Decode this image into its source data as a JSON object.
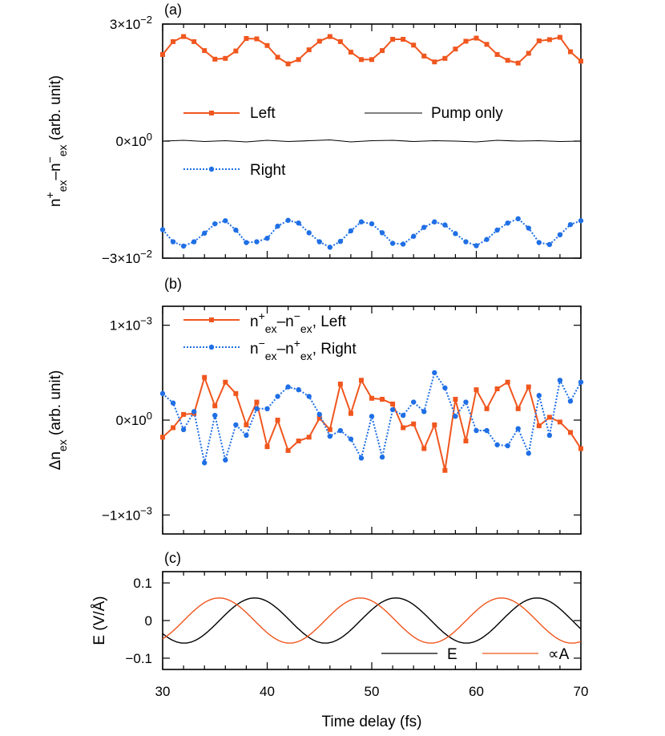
{
  "colors": {
    "left": "#f0561e",
    "right": "#1f6fe5",
    "pump_only": "#000000",
    "E": "#000000",
    "A": "#f0561e"
  },
  "xaxis": {
    "label": "Time delay (fs)",
    "ticks": [
      30,
      40,
      50,
      60,
      70
    ],
    "tick_labels": [
      "30",
      "40",
      "50",
      "60",
      "70"
    ]
  },
  "chart_data": [
    {
      "panel": "(a)",
      "type": "line",
      "xlim": [
        30,
        70
      ],
      "ylim": [
        -0.03,
        0.03
      ],
      "ylabel": {
        "base": "n",
        "sup1": "+",
        "sub1": "ex",
        "dash": "–n",
        "sup2": "−",
        "sub2": "ex",
        "unit": " (arb. unit)"
      },
      "yticks": [
        {
          "value": 0.03,
          "mantissa": "3×10",
          "exp": "−2"
        },
        {
          "value": 0,
          "mantissa": "0×10",
          "exp": "0"
        },
        {
          "value": -0.03,
          "mantissa": "−3×10",
          "exp": "−2"
        }
      ],
      "legend": {
        "left": "Left",
        "pump_only": "Pump only",
        "right": "Right"
      },
      "series": [
        {
          "key": "left",
          "name": "Left",
          "style": "solid-square",
          "x": [
            30,
            31,
            32,
            33,
            34,
            35,
            36,
            37,
            38,
            39,
            40,
            41,
            42,
            43,
            44,
            45,
            46,
            47,
            48,
            49,
            50,
            51,
            52,
            53,
            54,
            55,
            56,
            57,
            58,
            59,
            60,
            61,
            62,
            63,
            64,
            65,
            66,
            67,
            68,
            69,
            70
          ],
          "y": [
            0.0222,
            0.0255,
            0.0268,
            0.0255,
            0.0232,
            0.021,
            0.0212,
            0.0231,
            0.0263,
            0.0262,
            0.0245,
            0.0215,
            0.0198,
            0.0209,
            0.0234,
            0.0256,
            0.0268,
            0.0255,
            0.0228,
            0.0209,
            0.0209,
            0.0232,
            0.0261,
            0.0261,
            0.0246,
            0.0218,
            0.0203,
            0.0212,
            0.0236,
            0.0256,
            0.0264,
            0.0248,
            0.0222,
            0.0207,
            0.02,
            0.0225,
            0.0257,
            0.026,
            0.0266,
            0.0229,
            0.0205
          ]
        },
        {
          "key": "right",
          "name": "Right",
          "style": "dotted-circle",
          "x": [
            30,
            31,
            32,
            33,
            34,
            35,
            36,
            37,
            38,
            39,
            40,
            41,
            42,
            43,
            44,
            45,
            46,
            47,
            48,
            49,
            50,
            51,
            52,
            53,
            54,
            55,
            56,
            57,
            58,
            59,
            60,
            61,
            62,
            63,
            64,
            65,
            66,
            67,
            68,
            69,
            70
          ],
          "y": [
            -0.0227,
            -0.0258,
            -0.0269,
            -0.0258,
            -0.0236,
            -0.0212,
            -0.0204,
            -0.0228,
            -0.026,
            -0.0258,
            -0.0249,
            -0.0218,
            -0.0203,
            -0.021,
            -0.0235,
            -0.0258,
            -0.0272,
            -0.0257,
            -0.023,
            -0.0207,
            -0.0212,
            -0.0235,
            -0.0262,
            -0.0264,
            -0.0244,
            -0.0221,
            -0.0207,
            -0.0215,
            -0.0237,
            -0.0258,
            -0.0268,
            -0.0252,
            -0.0228,
            -0.021,
            -0.0199,
            -0.0223,
            -0.026,
            -0.0265,
            -0.024,
            -0.0214,
            -0.0204
          ]
        },
        {
          "key": "pump_only",
          "name": "Pump only",
          "style": "thin-line",
          "x": [
            30,
            32,
            34,
            36,
            38,
            40,
            42,
            44,
            46,
            48,
            50,
            52,
            54,
            56,
            58,
            60,
            62,
            64,
            66,
            68,
            70
          ],
          "y": [
            0.0,
            0.0002,
            -0.0001,
            0.0001,
            -0.0002,
            0.0002,
            -0.0001,
            0.0001,
            0.0003,
            -0.0002,
            0.0001,
            0.0002,
            -0.0001,
            0.0001,
            0.0,
            -0.0002,
            0.0002,
            0.0,
            0.0001,
            -0.0001,
            0.0
          ]
        }
      ]
    },
    {
      "panel": "(b)",
      "type": "line",
      "xlim": [
        30,
        70
      ],
      "ylim": [
        -0.0012,
        0.0012
      ],
      "ylabel": {
        "base": "Δn",
        "sub1": "ex",
        "unit": " (arb. unit)"
      },
      "yticks": [
        {
          "value": 0.001,
          "mantissa": "1×10",
          "exp": "−3"
        },
        {
          "value": 0,
          "mantissa": "0×10",
          "exp": "0"
        },
        {
          "value": -0.001,
          "mantissa": "−1×10",
          "exp": "−3"
        }
      ],
      "legend": {
        "left": {
          "a": "n",
          "sa": "+",
          "ba": "ex",
          "b": "–n",
          "sb": "−",
          "bb": "ex",
          "tail": ", Left"
        },
        "right": {
          "a": "n",
          "sa": "−",
          "ba": "ex",
          "b": "–n",
          "sb": "+",
          "bb": "ex",
          "tail": ", Right"
        }
      },
      "series": [
        {
          "key": "left",
          "name": "n+ex–n−ex, Left",
          "style": "solid-square",
          "x": [
            30,
            31,
            32,
            33,
            34,
            35,
            36,
            37,
            38,
            39,
            40,
            41,
            42,
            43,
            44,
            45,
            46,
            47,
            48,
            49,
            50,
            51,
            52,
            53,
            54,
            55,
            56,
            57,
            58,
            59,
            60,
            61,
            62,
            63,
            64,
            65,
            66,
            67,
            68,
            69,
            70
          ],
          "y": [
            -0.00018,
            -8e-05,
            6e-05,
            7e-05,
            0.00045,
            0.00015,
            0.0004,
            0.00028,
            -5e-05,
            0.00019,
            -0.00028,
            0.0,
            -0.00032,
            -0.00022,
            -0.00018,
            2e-05,
            -0.0001,
            0.00038,
            7e-05,
            0.00042,
            0.00023,
            0.00022,
            0.00017,
            -8e-05,
            -4e-05,
            -0.0003,
            -5e-05,
            -0.00053,
            0.00022,
            -0.00022,
            0.00032,
            0.00012,
            0.00033,
            0.0004,
            0.00012,
            0.00035,
            -6e-05,
            3e-05,
            -2e-05,
            -0.00013,
            -0.0003
          ]
        },
        {
          "key": "right",
          "name": "n−ex–n+ex, Right",
          "style": "dotted-circle",
          "x": [
            30,
            31,
            32,
            33,
            34,
            35,
            36,
            37,
            38,
            39,
            40,
            41,
            42,
            43,
            44,
            45,
            46,
            47,
            48,
            49,
            50,
            51,
            52,
            53,
            54,
            55,
            56,
            57,
            58,
            59,
            60,
            61,
            62,
            63,
            64,
            65,
            66,
            67,
            68,
            69,
            70
          ],
          "y": [
            0.00028,
            0.00018,
            -0.0001,
            9e-05,
            -0.00045,
            5e-05,
            -0.00042,
            -5e-05,
            -0.00016,
            0.00012,
            0.00012,
            0.00025,
            0.00035,
            0.00032,
            0.00025,
            6e-05,
            -0.00017,
            -0.00011,
            -0.0002,
            -0.0004,
            4e-05,
            -0.00039,
            0.00011,
            5e-05,
            0.00019,
            9e-05,
            0.0005,
            0.00034,
            4e-05,
            0.00019,
            -0.00011,
            -0.00011,
            -0.00026,
            -0.00027,
            -9e-05,
            -0.00035,
            0.00026,
            -0.00016,
            0.00042,
            0.0002,
            0.0004
          ]
        }
      ]
    },
    {
      "panel": "(c)",
      "type": "line",
      "xlim": [
        30,
        70
      ],
      "ylim": [
        -0.13,
        0.13
      ],
      "ylabel": {
        "base": "E (V/Å)"
      },
      "yticks": [
        {
          "value": 0.1,
          "label": "0.1"
        },
        {
          "value": 0,
          "label": "0"
        },
        {
          "value": -0.1,
          "label": "−0.1"
        }
      ],
      "legend": {
        "E": "E",
        "A": "∝A"
      },
      "series": [
        {
          "key": "E",
          "name": "E",
          "amplitude": 0.06,
          "period": 13.5,
          "peak_at": 38.8
        },
        {
          "key": "A",
          "name": "∝A",
          "amplitude": 0.06,
          "period": 13.5,
          "peak_at": 35.4
        }
      ]
    }
  ]
}
